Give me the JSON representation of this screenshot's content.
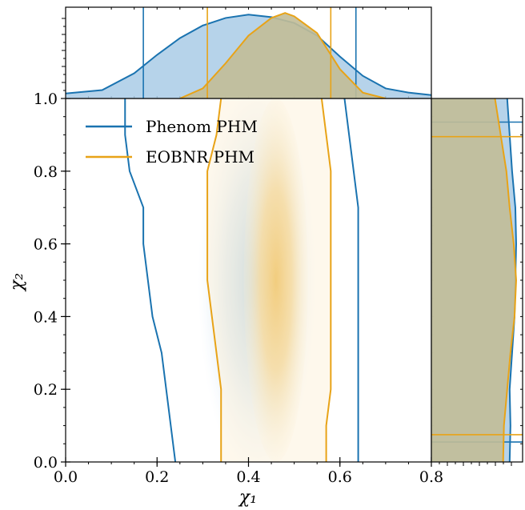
{
  "chart_data": {
    "type": "area",
    "xlabel": "χ₁",
    "ylabel": "χ₂",
    "main": {
      "xlim": [
        0.0,
        0.8
      ],
      "ylim": [
        0.0,
        1.0
      ],
      "xticks": [
        "0.0",
        "0.2",
        "0.4",
        "0.6",
        "0.8"
      ],
      "yticks": [
        "0.0",
        "0.2",
        "0.4",
        "0.6",
        "0.8",
        "1.0"
      ],
      "xtick_values": [
        0.0,
        0.2,
        0.4,
        0.6,
        0.8
      ],
      "ytick_values": [
        0.0,
        0.2,
        0.4,
        0.6,
        0.8,
        1.0
      ]
    },
    "legend": {
      "placement": "top-left"
    },
    "series": [
      {
        "name": "Phenom PHM",
        "color": "#1a73b0",
        "fill": "#a9cbe6",
        "density_center": [
          0.42,
          0.5
        ],
        "density_spread": [
          0.13,
          0.55
        ],
        "contour": {
          "left": [
            [
              0.24,
              0.0
            ],
            [
              0.23,
              0.1
            ],
            [
              0.22,
              0.2
            ],
            [
              0.21,
              0.3
            ],
            [
              0.19,
              0.4
            ],
            [
              0.18,
              0.5
            ],
            [
              0.17,
              0.6
            ],
            [
              0.17,
              0.7
            ],
            [
              0.14,
              0.8
            ],
            [
              0.13,
              0.9
            ],
            [
              0.13,
              1.0
            ]
          ],
          "right": [
            [
              0.64,
              0.0
            ],
            [
              0.64,
              0.1
            ],
            [
              0.64,
              0.2
            ],
            [
              0.64,
              0.3
            ],
            [
              0.64,
              0.4
            ],
            [
              0.64,
              0.5
            ],
            [
              0.64,
              0.6
            ],
            [
              0.64,
              0.7
            ],
            [
              0.63,
              0.8
            ],
            [
              0.62,
              0.9
            ],
            [
              0.61,
              1.0
            ]
          ]
        },
        "x_marginal": [
          [
            0.0,
            0.06
          ],
          [
            0.08,
            0.1
          ],
          [
            0.15,
            0.3
          ],
          [
            0.2,
            0.52
          ],
          [
            0.25,
            0.72
          ],
          [
            0.3,
            0.87
          ],
          [
            0.35,
            0.96
          ],
          [
            0.4,
            1.0
          ],
          [
            0.45,
            0.97
          ],
          [
            0.5,
            0.9
          ],
          [
            0.55,
            0.75
          ],
          [
            0.6,
            0.5
          ],
          [
            0.65,
            0.27
          ],
          [
            0.7,
            0.12
          ],
          [
            0.75,
            0.07
          ],
          [
            0.8,
            0.04
          ]
        ],
        "x_bounds": [
          0.17,
          0.635
        ],
        "y_marginal": [
          [
            0.0,
            0.96
          ],
          [
            0.1,
            0.97
          ],
          [
            0.2,
            0.96
          ],
          [
            0.3,
            0.99
          ],
          [
            0.4,
            1.02
          ],
          [
            0.5,
            1.03
          ],
          [
            0.6,
            1.04
          ],
          [
            0.7,
            1.03
          ],
          [
            0.8,
            0.99
          ],
          [
            0.9,
            0.96
          ],
          [
            1.0,
            0.93
          ]
        ],
        "y_bounds": [
          0.055,
          0.935
        ]
      },
      {
        "name": "EOBNR PHM",
        "color": "#e8a317",
        "fill": "#c2bd97",
        "density_center": [
          0.46,
          0.5
        ],
        "density_spread": [
          0.07,
          0.5
        ],
        "contour": {
          "left": [
            [
              0.34,
              0.0
            ],
            [
              0.34,
              0.1
            ],
            [
              0.34,
              0.2
            ],
            [
              0.33,
              0.3
            ],
            [
              0.32,
              0.4
            ],
            [
              0.31,
              0.5
            ],
            [
              0.31,
              0.6
            ],
            [
              0.31,
              0.7
            ],
            [
              0.31,
              0.8
            ],
            [
              0.33,
              0.9
            ],
            [
              0.34,
              1.0
            ]
          ],
          "right": [
            [
              0.57,
              0.0
            ],
            [
              0.57,
              0.1
            ],
            [
              0.58,
              0.2
            ],
            [
              0.58,
              0.3
            ],
            [
              0.58,
              0.4
            ],
            [
              0.58,
              0.5
            ],
            [
              0.58,
              0.6
            ],
            [
              0.58,
              0.7
            ],
            [
              0.58,
              0.8
            ],
            [
              0.57,
              0.9
            ],
            [
              0.56,
              1.0
            ]
          ]
        },
        "x_marginal": [
          [
            0.25,
            0.0
          ],
          [
            0.3,
            0.12
          ],
          [
            0.35,
            0.42
          ],
          [
            0.4,
            0.75
          ],
          [
            0.45,
            0.96
          ],
          [
            0.48,
            1.02
          ],
          [
            0.5,
            0.98
          ],
          [
            0.55,
            0.78
          ],
          [
            0.6,
            0.35
          ],
          [
            0.65,
            0.07
          ],
          [
            0.7,
            0.0
          ]
        ],
        "x_bounds": [
          0.31,
          0.58
        ],
        "y_marginal": [
          [
            0.0,
            0.88
          ],
          [
            0.1,
            0.89
          ],
          [
            0.2,
            0.93
          ],
          [
            0.3,
            0.97
          ],
          [
            0.4,
            1.02
          ],
          [
            0.5,
            1.04
          ],
          [
            0.6,
            1.01
          ],
          [
            0.7,
            0.96
          ],
          [
            0.8,
            0.92
          ],
          [
            0.9,
            0.85
          ],
          [
            1.0,
            0.78
          ]
        ],
        "y_bounds": [
          0.075,
          0.895
        ]
      }
    ]
  }
}
